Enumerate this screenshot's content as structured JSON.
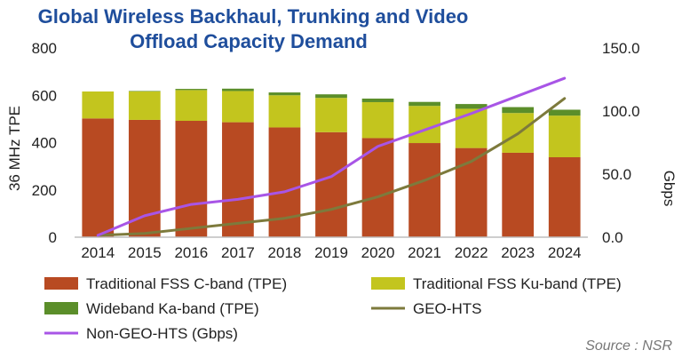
{
  "chart_data": {
    "type": "bar",
    "title_lines": [
      "Global Wireless Backhaul, Trunking and Video",
      "Offload Capacity Demand"
    ],
    "categories": [
      "2014",
      "2015",
      "2016",
      "2017",
      "2018",
      "2019",
      "2020",
      "2021",
      "2022",
      "2023",
      "2024"
    ],
    "ylabel": "36 MHz TPE",
    "ylim": [
      0,
      800
    ],
    "yticks": [
      "0",
      "200",
      "400",
      "600",
      "800"
    ],
    "y2label": "Gbps",
    "y2lim": [
      0,
      150
    ],
    "y2ticks": [
      "0.0",
      "50.0",
      "100.0",
      "150.0"
    ],
    "grid": false,
    "legend_position": "bottom",
    "series": [
      {
        "name": "Traditional FSS C-band (TPE)",
        "kind": "bar",
        "axis": "left",
        "color": "#b84a22",
        "values": [
          502,
          496,
          492,
          486,
          464,
          444,
          419,
          398,
          377,
          357,
          338
        ]
      },
      {
        "name": "Traditional FSS Ku-band (TPE)",
        "kind": "bar",
        "axis": "left",
        "color": "#c3c51e",
        "values": [
          114,
          120,
          130,
          132,
          136,
          145,
          152,
          157,
          166,
          168,
          176
        ]
      },
      {
        "name": "Wideband Ka-band (TPE)",
        "kind": "bar",
        "axis": "left",
        "color": "#5b8e2a",
        "values": [
          0,
          2,
          5,
          10,
          12,
          15,
          15,
          17,
          20,
          25,
          25
        ]
      },
      {
        "name": "GEO-HTS",
        "kind": "line",
        "axis": "right",
        "color": "#7d7a3c",
        "values": [
          1.5,
          3.0,
          7.0,
          11.0,
          15.0,
          22.0,
          32.0,
          45.0,
          60.0,
          82.0,
          110.0
        ]
      },
      {
        "name": "Non-GEO-HTS (Gbps)",
        "kind": "line",
        "axis": "right",
        "color": "#a855e6",
        "values": [
          1.5,
          17.0,
          26.0,
          30.0,
          36.0,
          48.0,
          72.0,
          85.0,
          98.0,
          112.0,
          126.0
        ]
      }
    ],
    "source": "Source : NSR"
  }
}
